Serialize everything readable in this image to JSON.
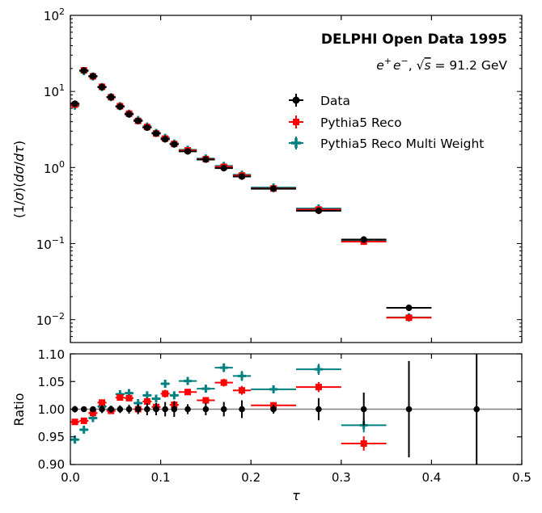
{
  "colors": {
    "data": "#000000",
    "reco": "#ff0000",
    "multi": "#008080",
    "refline": "#808080"
  },
  "chart_data": [
    {
      "type": "scatter",
      "panel": "top",
      "yscale": "log",
      "title": "DELPHI Open Data 1995",
      "subtitle_plain": "e+e−, √s = 91.2 GeV",
      "sub": {
        "e": "e",
        "pl": "+",
        "e2": "e",
        "mi": "−",
        "sep": ", ",
        "s": "s",
        "eq": " = 91.2 GeV"
      },
      "ylabel": "(1/σ)(dσ/dτ)",
      "ylabel_parts": {
        "a": "(1/",
        "sigma": "σ",
        "b": ")(",
        "d1": "d",
        "sigma2": "σ",
        "c": "/",
        "d2": "d",
        "tau": "τ",
        "e": ")"
      },
      "xlim": [
        0.0,
        0.5
      ],
      "ylim": [
        0.005,
        100
      ],
      "ytick_labels": [
        {
          "base": "10",
          "exp": "−2"
        },
        {
          "base": "10",
          "exp": "−1"
        },
        {
          "base": "10",
          "exp": "0"
        },
        {
          "base": "10",
          "exp": "1"
        },
        {
          "base": "10",
          "exp": "2"
        }
      ],
      "legend": [
        "Data",
        "Pythia5 Reco",
        "Pythia5 Reco Multi Weight"
      ],
      "legend_position": "center-right",
      "bins": [
        [
          0.0,
          0.01
        ],
        [
          0.01,
          0.02
        ],
        [
          0.02,
          0.03
        ],
        [
          0.03,
          0.04
        ],
        [
          0.04,
          0.05
        ],
        [
          0.05,
          0.06
        ],
        [
          0.06,
          0.07
        ],
        [
          0.07,
          0.08
        ],
        [
          0.08,
          0.09
        ],
        [
          0.09,
          0.1
        ],
        [
          0.1,
          0.11
        ],
        [
          0.11,
          0.12
        ],
        [
          0.12,
          0.14
        ],
        [
          0.14,
          0.16
        ],
        [
          0.16,
          0.18
        ],
        [
          0.18,
          0.2
        ],
        [
          0.2,
          0.25
        ],
        [
          0.25,
          0.3
        ],
        [
          0.3,
          0.35
        ],
        [
          0.35,
          0.4
        ]
      ],
      "series": [
        {
          "name": "Data",
          "marker": "circle",
          "values": [
            6.9,
            18.8,
            15.9,
            11.4,
            8.4,
            6.3,
            5.0,
            4.1,
            3.35,
            2.8,
            2.35,
            2.02,
            1.63,
            1.27,
            0.98,
            0.76,
            0.525,
            0.27,
            0.113,
            0.0143
          ]
        },
        {
          "name": "Pythia5 Reco",
          "marker": "square",
          "values": [
            6.7,
            18.9,
            15.8,
            11.5,
            8.4,
            6.4,
            5.1,
            4.1,
            3.4,
            2.8,
            2.4,
            2.04,
            1.68,
            1.29,
            1.02,
            0.785,
            0.53,
            0.28,
            0.106,
            0.0106
          ]
        },
        {
          "name": "Pythia5 Reco Multi Weight",
          "marker": "plus",
          "values": [
            6.5,
            18.5,
            15.7,
            11.4,
            8.4,
            6.4,
            5.1,
            4.2,
            3.45,
            2.85,
            2.45,
            2.06,
            1.71,
            1.31,
            1.05,
            0.805,
            0.545,
            0.29,
            0.11,
            0.0107
          ]
        }
      ]
    },
    {
      "type": "scatter",
      "panel": "ratio",
      "xlabel": "τ",
      "ylabel": "Ratio",
      "xlim": [
        0.0,
        0.5
      ],
      "ylim": [
        0.9,
        1.1
      ],
      "xticks": [
        "0.0",
        "0.1",
        "0.2",
        "0.3",
        "0.4",
        "0.5"
      ],
      "yticks": [
        "0.90",
        "0.95",
        "1.00",
        "1.05",
        "1.10"
      ],
      "bins": [
        [
          0.0,
          0.01
        ],
        [
          0.01,
          0.02
        ],
        [
          0.02,
          0.03
        ],
        [
          0.03,
          0.04
        ],
        [
          0.04,
          0.05
        ],
        [
          0.05,
          0.06
        ],
        [
          0.06,
          0.07
        ],
        [
          0.07,
          0.08
        ],
        [
          0.08,
          0.09
        ],
        [
          0.09,
          0.1
        ],
        [
          0.1,
          0.11
        ],
        [
          0.11,
          0.12
        ],
        [
          0.12,
          0.14
        ],
        [
          0.14,
          0.16
        ],
        [
          0.16,
          0.18
        ],
        [
          0.18,
          0.2
        ],
        [
          0.2,
          0.25
        ],
        [
          0.25,
          0.3
        ],
        [
          0.3,
          0.35
        ],
        [
          0.35,
          0.4
        ],
        [
          0.4,
          0.5
        ]
      ],
      "series": [
        {
          "name": "Data",
          "marker": "circle",
          "values": [
            1.0,
            1.0,
            1.0,
            1.0,
            1.0,
            1.0,
            1.0,
            1.0,
            1.0,
            1.0,
            1.0,
            1.0,
            1.0,
            1.0,
            1.0,
            1.0,
            1.0,
            1.0,
            1.0,
            1.0,
            1.0
          ],
          "errors": [
            0.006,
            0.004,
            0.005,
            0.007,
            0.006,
            0.007,
            0.008,
            0.009,
            0.011,
            0.011,
            0.013,
            0.014,
            0.009,
            0.011,
            0.013,
            0.016,
            0.008,
            0.02,
            0.03,
            0.087,
            0.1
          ]
        },
        {
          "name": "Pythia5 Reco",
          "marker": "square",
          "values": [
            0.977,
            0.979,
            0.993,
            1.012,
            0.997,
            1.021,
            1.02,
            1.0,
            1.014,
            1.004,
            1.028,
            1.008,
            1.031,
            1.016,
            1.048,
            1.034,
            1.007,
            1.04,
            0.938,
            null,
            null
          ],
          "errors": [
            0.003,
            0.003,
            0.003,
            0.004,
            0.004,
            0.004,
            0.005,
            0.005,
            0.006,
            0.006,
            0.007,
            0.007,
            0.005,
            0.006,
            0.007,
            0.008,
            0.005,
            0.009,
            0.013,
            null,
            null
          ]
        },
        {
          "name": "Pythia5 Reco Multi Weight",
          "marker": "plus",
          "values": [
            0.945,
            0.963,
            0.984,
            1.005,
            0.999,
            1.027,
            1.029,
            1.011,
            1.025,
            1.019,
            1.046,
            1.025,
            1.051,
            1.037,
            1.075,
            1.06,
            1.036,
            1.072,
            0.971,
            null,
            null
          ],
          "errors": [
            0.003,
            0.003,
            0.003,
            0.004,
            0.004,
            0.004,
            0.005,
            0.005,
            0.006,
            0.006,
            0.007,
            0.007,
            0.005,
            0.006,
            0.008,
            0.009,
            0.005,
            0.01,
            0.013,
            null,
            null
          ]
        }
      ]
    }
  ]
}
